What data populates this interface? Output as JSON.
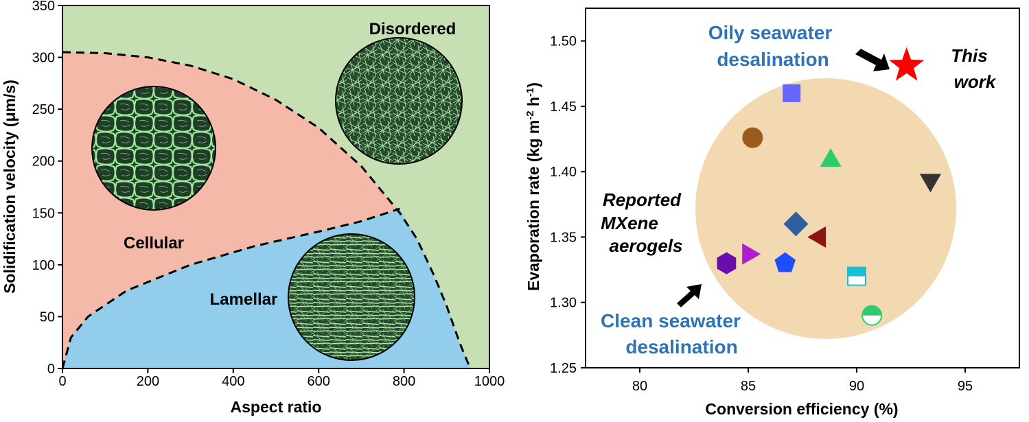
{
  "chart_data": [
    {
      "type": "area",
      "xlabel": "Aspect ratio",
      "ylabel": "Solidification velocity (μm/s)",
      "xlim": [
        0,
        1000
      ],
      "ylim": [
        0,
        350
      ],
      "xticks": [
        0,
        200,
        400,
        600,
        800,
        1000
      ],
      "yticks": [
        0,
        50,
        100,
        150,
        200,
        250,
        300,
        350
      ],
      "regions": [
        {
          "name": "Disordered",
          "color": "#c6e0b4"
        },
        {
          "name": "Cellular",
          "color": "#f4b9a8"
        },
        {
          "name": "Lamellar",
          "color": "#92cdec"
        }
      ],
      "boundaries": {
        "cellular_upper": [
          [
            0,
            305
          ],
          [
            100,
            304
          ],
          [
            200,
            300
          ],
          [
            300,
            292
          ],
          [
            400,
            279
          ],
          [
            500,
            259
          ],
          [
            600,
            232
          ],
          [
            700,
            195
          ],
          [
            790,
            150
          ]
        ],
        "lamellar_upper": [
          [
            0,
            0
          ],
          [
            20,
            30
          ],
          [
            60,
            50
          ],
          [
            150,
            75
          ],
          [
            300,
            100
          ],
          [
            450,
            118
          ],
          [
            600,
            132
          ],
          [
            700,
            142
          ],
          [
            790,
            154
          ]
        ],
        "lamellar_right": [
          [
            790,
            154
          ],
          [
            830,
            125
          ],
          [
            870,
            90
          ],
          [
            900,
            60
          ],
          [
            930,
            25
          ],
          [
            955,
            0
          ]
        ]
      }
    },
    {
      "type": "scatter",
      "xlabel": "Conversion efficiency (%)",
      "ylabel": "Evaporation rate (kg m-2 h-1)",
      "xlim": [
        77.5,
        97.5
      ],
      "ylim": [
        1.25,
        1.525
      ],
      "xticks": [
        80,
        85,
        90,
        95
      ],
      "yticks": [
        1.25,
        1.3,
        1.35,
        1.4,
        1.45,
        1.5
      ],
      "points": [
        {
          "x": 87.0,
          "y": 1.46,
          "marker": "square",
          "color": "#6666ff"
        },
        {
          "x": 85.2,
          "y": 1.426,
          "marker": "circle",
          "color": "#9c5b1e"
        },
        {
          "x": 88.8,
          "y": 1.41,
          "marker": "triangle-up",
          "color": "#2ecc71"
        },
        {
          "x": 93.4,
          "y": 1.392,
          "marker": "triangle-down",
          "color": "#333333"
        },
        {
          "x": 87.2,
          "y": 1.36,
          "marker": "diamond",
          "color": "#2f5f9e"
        },
        {
          "x": 88.2,
          "y": 1.35,
          "marker": "triangle-left",
          "color": "#8b1414"
        },
        {
          "x": 85.1,
          "y": 1.337,
          "marker": "triangle-right",
          "color": "#b31bd3"
        },
        {
          "x": 84.0,
          "y": 1.33,
          "marker": "hexagon",
          "color": "#6a0dad"
        },
        {
          "x": 86.7,
          "y": 1.33,
          "marker": "pentagon",
          "color": "#1e4fff"
        },
        {
          "x": 90.0,
          "y": 1.32,
          "marker": "half-square",
          "color": "#19c0d0"
        },
        {
          "x": 90.7,
          "y": 1.29,
          "marker": "half-circle",
          "color": "#2ecc71"
        },
        {
          "x": 92.3,
          "y": 1.481,
          "marker": "star",
          "color": "#ff0000"
        }
      ]
    }
  ],
  "left_chart": {
    "labels": {
      "disordered": "Disordered",
      "cellular": "Cellular",
      "lamellar": "Lamellar"
    },
    "xlabel": "Aspect ratio",
    "ylabel": "Solidification velocity (μm/s)"
  },
  "right_chart": {
    "note_oily_1": "Oily seawater",
    "note_oily_2": "desalination",
    "note_this_1": "This",
    "note_this_2": "work",
    "note_rep_1": "Reported",
    "note_rep_2": "MXene",
    "note_rep_3": "aerogels",
    "note_clean_1": "Clean seawater",
    "note_clean_2": "desalination",
    "xlabel": "Conversion efficiency (%)",
    "ylabel_main": "Evaporation rate (kg m",
    "ylabel_sup1": "-2",
    "ylabel_mid": " h",
    "ylabel_sup2": "-1",
    "ylabel_end": ")"
  },
  "colors": {
    "disordered": "#c6e0b4",
    "cellular": "#f4b9a8",
    "lamellar": "#92cdec",
    "bubble": "#f2d5a8",
    "note_blue": "#2e74b5"
  }
}
